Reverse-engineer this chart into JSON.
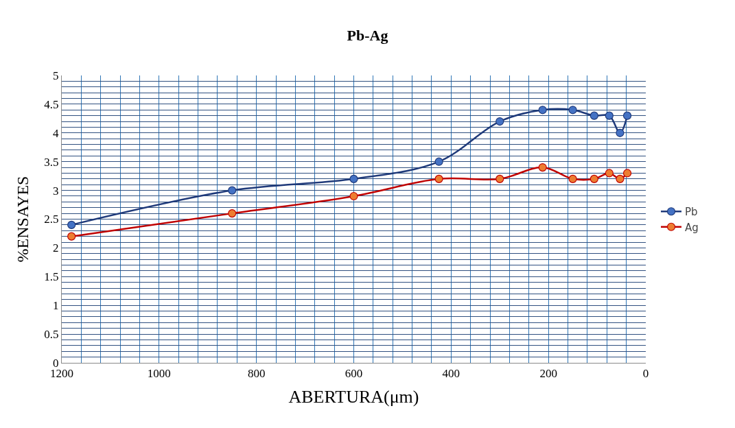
{
  "chart_data": {
    "type": "line",
    "title": "Pb-Ag",
    "xlabel": "ABERTURA(μm)",
    "ylabel": "%ENSAYES",
    "x": [
      1180,
      850,
      600,
      425,
      300,
      212,
      150,
      106,
      75,
      53,
      38
    ],
    "series": [
      {
        "name": "Pb",
        "color": "#1f3a7a",
        "values": [
          2.4,
          3.0,
          3.2,
          3.5,
          4.2,
          4.4,
          4.4,
          4.3,
          4.3,
          4.0,
          4.3
        ]
      },
      {
        "name": "Ag",
        "color": "#c00000",
        "values": [
          2.2,
          2.6,
          2.9,
          3.2,
          3.2,
          3.4,
          3.2,
          3.2,
          3.3,
          3.2,
          3.3
        ]
      }
    ],
    "xlim": [
      1200,
      0
    ],
    "xticks": [
      1200,
      {
        "value": 1160,
        "label": null
      },
      {
        "value": 1120,
        "label": null
      },
      {
        "value": 1080,
        "label": null
      },
      {
        "value": 1040,
        "label": null
      },
      1000,
      {
        "value": 960,
        "label": null
      },
      {
        "value": 920,
        "label": null
      },
      {
        "value": 880,
        "label": null
      },
      {
        "value": 840,
        "label": null
      },
      800,
      {
        "value": 760,
        "label": null
      },
      {
        "value": 720,
        "label": null
      },
      {
        "value": 680,
        "label": null
      },
      {
        "value": 640,
        "label": null
      },
      600,
      {
        "value": 560,
        "label": null
      },
      {
        "value": 520,
        "label": null
      },
      {
        "value": 480,
        "label": null
      },
      {
        "value": 440,
        "label": null
      },
      400,
      {
        "value": 360,
        "label": null
      },
      {
        "value": 320,
        "label": null
      },
      {
        "value": 280,
        "label": null
      },
      {
        "value": 240,
        "label": null
      },
      200,
      {
        "value": 160,
        "label": null
      },
      {
        "value": 120,
        "label": null
      },
      {
        "value": 80,
        "label": null
      },
      {
        "value": 40,
        "label": null
      },
      0
    ],
    "ylim": [
      0,
      5
    ],
    "yticks": [
      0,
      {
        "value": 0.1,
        "label": null
      },
      {
        "value": 0.2,
        "label": null
      },
      {
        "value": 0.3,
        "label": null
      },
      {
        "value": 0.4,
        "label": null
      },
      0.5,
      {
        "value": 0.6,
        "label": null
      },
      {
        "value": 0.7,
        "label": null
      },
      {
        "value": 0.8,
        "label": null
      },
      {
        "value": 0.9,
        "label": null
      },
      1,
      {
        "value": 1.1,
        "label": null
      },
      {
        "value": 1.2,
        "label": null
      },
      {
        "value": 1.3,
        "label": null
      },
      {
        "value": 1.4,
        "label": null
      },
      1.5,
      {
        "value": 1.6,
        "label": null
      },
      {
        "value": 1.7,
        "label": null
      },
      {
        "value": 1.8,
        "label": null
      },
      {
        "value": 1.9,
        "label": null
      },
      2,
      {
        "value": 2.1,
        "label": null
      },
      {
        "value": 2.2,
        "label": null
      },
      {
        "value": 2.3,
        "label": null
      },
      {
        "value": 2.4,
        "label": null
      },
      2.5,
      {
        "value": 2.6,
        "label": null
      },
      {
        "value": 2.7,
        "label": null
      },
      {
        "value": 2.8,
        "label": null
      },
      {
        "value": 2.9,
        "label": null
      },
      3,
      {
        "value": 3.1,
        "label": null
      },
      {
        "value": 3.2,
        "label": null
      },
      {
        "value": 3.3,
        "label": null
      },
      {
        "value": 3.4,
        "label": null
      },
      3.5,
      {
        "value": 3.6,
        "label": null
      },
      {
        "value": 3.7,
        "label": null
      },
      {
        "value": 3.8,
        "label": null
      },
      {
        "value": 3.9,
        "label": null
      },
      4,
      {
        "value": 4.1,
        "label": null
      },
      {
        "value": 4.2,
        "label": null
      },
      {
        "value": 4.3,
        "label": null
      },
      {
        "value": 4.4,
        "label": null
      },
      4.5,
      {
        "value": 4.6,
        "label": null
      },
      {
        "value": 4.7,
        "label": null
      },
      {
        "value": 4.8,
        "label": null
      },
      {
        "value": 4.9,
        "label": null
      },
      5
    ],
    "grid": true,
    "legend": "right",
    "marker": "circle",
    "line_style": "solid"
  }
}
